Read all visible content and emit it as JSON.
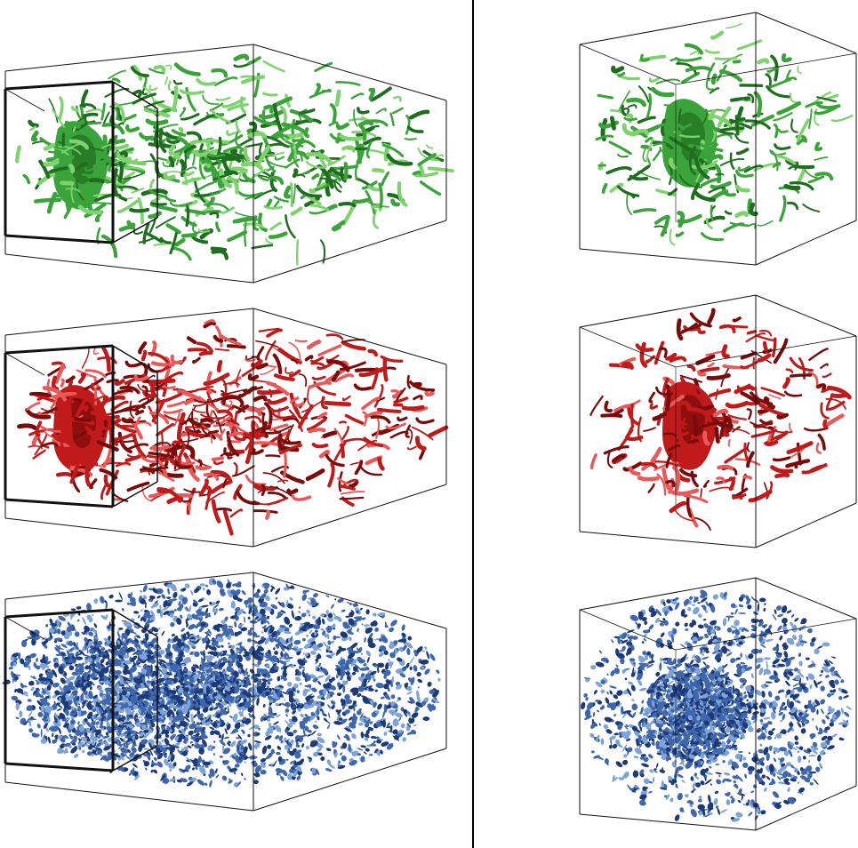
{
  "figure": {
    "rows": [
      {
        "id": "row-1",
        "color_light": "#7fd36f",
        "color_mid": "#3aa33a",
        "color_dark": "#1f6e1f"
      },
      {
        "id": "row-2",
        "color_light": "#e85a5a",
        "color_mid": "#c01a1a",
        "color_dark": "#7a0b0b"
      },
      {
        "id": "row-3",
        "color_light": "#7ea3d8",
        "color_mid": "#3e67ad",
        "color_dark": "#1d3a78"
      }
    ],
    "panels": [
      "elongated-domain",
      "cubic-domain"
    ],
    "background": "#ffffff",
    "frame_color": "#111111",
    "divider_color": "#000000"
  }
}
